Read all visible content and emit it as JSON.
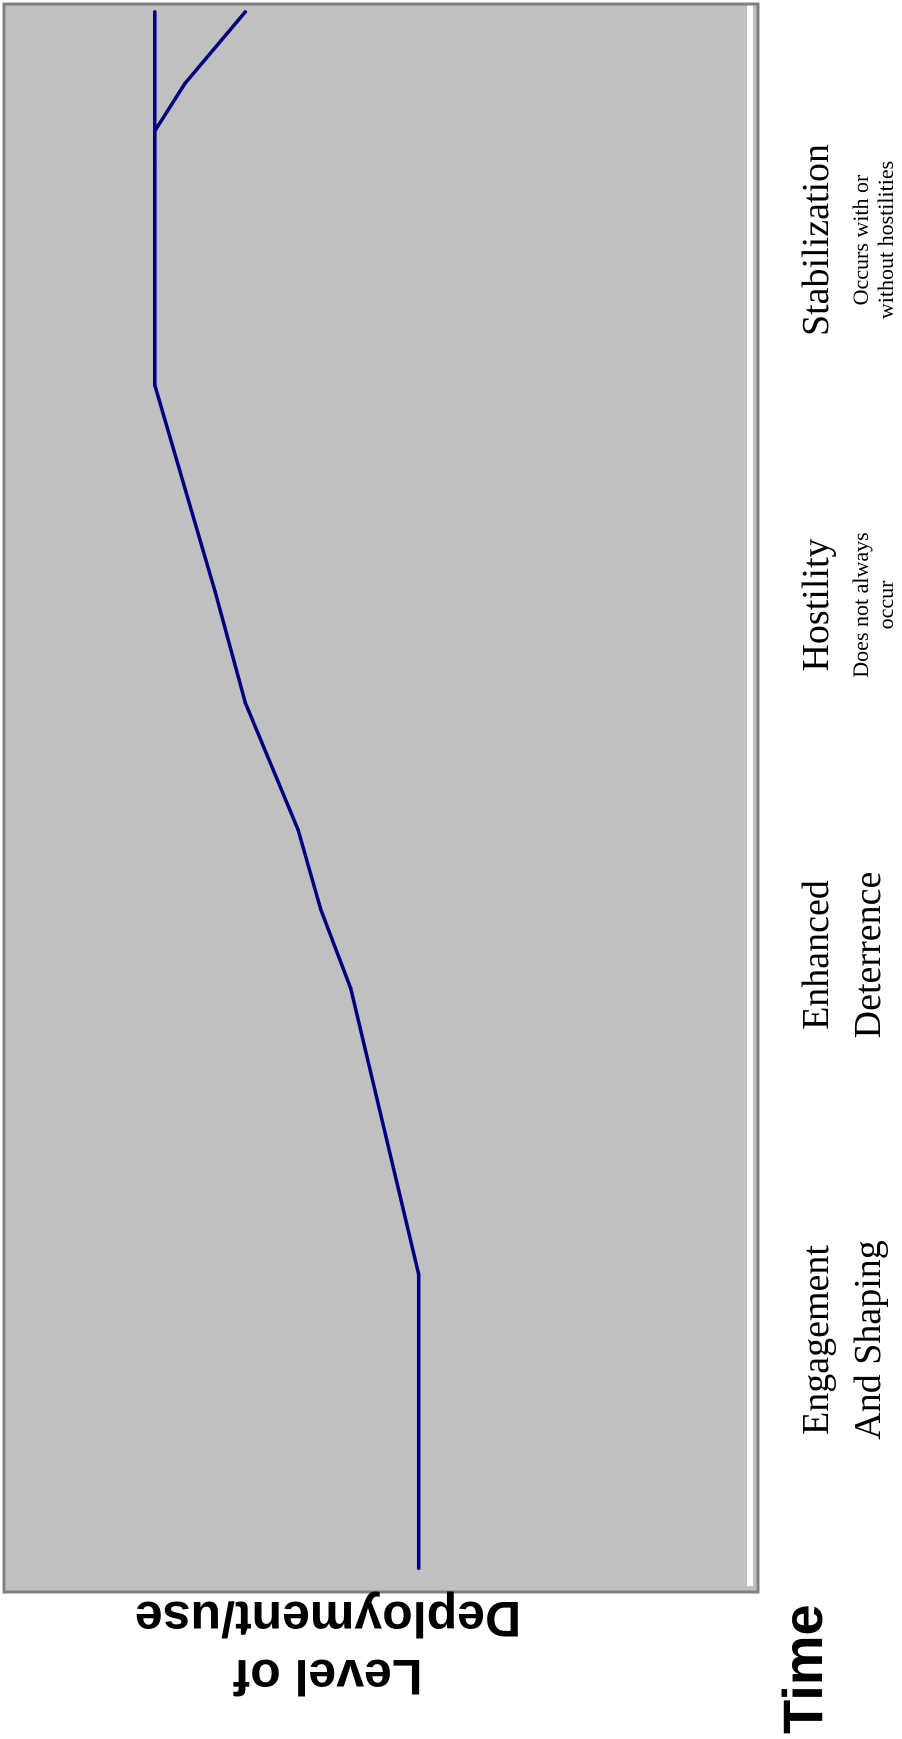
{
  "chart_data": {
    "type": "line",
    "orientation": "rotated-90-clockwise",
    "xlabel": "Time",
    "ylabel": "Level of Deployment/use",
    "phases": [
      {
        "name": "Engagement",
        "name2": "And Shaping",
        "note": "",
        "note2": ""
      },
      {
        "name": "Enhanced",
        "name2": "Deterrence",
        "note": "",
        "note2": ""
      },
      {
        "name": "Hostility",
        "name2": "",
        "note": "Does not always",
        "note2": "occur"
      },
      {
        "name": "Stabilization",
        "name2": "",
        "note": "Occurs with or",
        "note2": "without hostilities"
      }
    ],
    "xlim": [
      0,
      100
    ],
    "ylim": [
      0,
      100
    ],
    "series": [
      {
        "x": [
          1.5,
          19,
          20,
          38,
          43,
          48,
          56,
          63,
          76,
          99.5
        ],
        "y": [
          45,
          45,
          45,
          54,
          58,
          61,
          68,
          72,
          80,
          80
        ]
      },
      {
        "x": [
          76,
          90,
          92,
          95,
          99.5
        ],
        "y": [
          80,
          80,
          80,
          76,
          68
        ]
      }
    ],
    "grid": false,
    "legend": "none",
    "colors": {
      "line": "#00007f",
      "plot_bg": "#c0c0c0",
      "frame": "#808080"
    }
  }
}
